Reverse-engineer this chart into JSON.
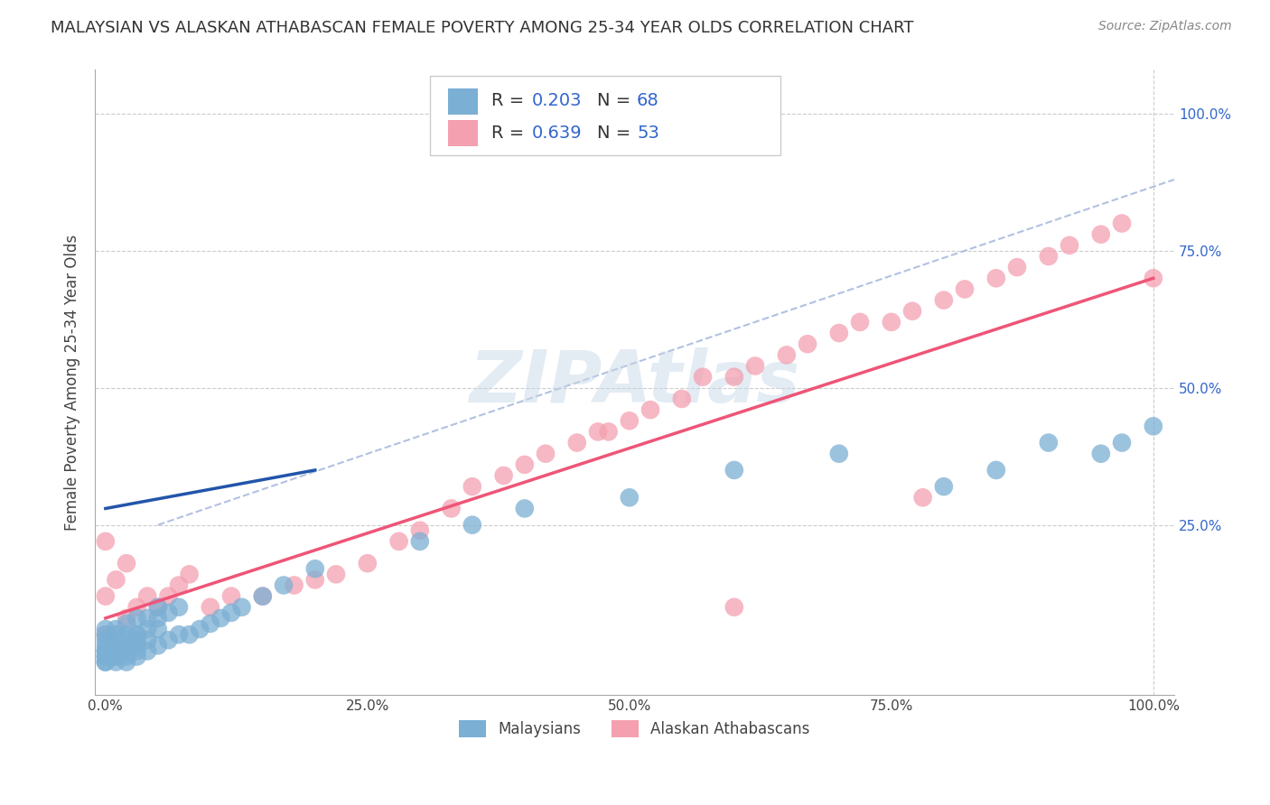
{
  "title": "MALAYSIAN VS ALASKAN ATHABASCAN FEMALE POVERTY AMONG 25-34 YEAR OLDS CORRELATION CHART",
  "source": "Source: ZipAtlas.com",
  "ylabel": "Female Poverty Among 25-34 Year Olds",
  "blue_color": "#7BAFD4",
  "pink_color": "#F4A0B0",
  "blue_line_color": "#2255AA",
  "pink_line_color": "#EE5577",
  "dash_color": "#AABBDD",
  "legend_R1": "0.203",
  "legend_N1": "68",
  "legend_R2": "0.639",
  "legend_N2": "53",
  "legend_label1": "Malaysians",
  "legend_label2": "Alaskan Athabascans",
  "RN_color": "#3366CC",
  "watermark_color": "#C8D8E8",
  "blue_x": [
    0.0,
    0.0,
    0.0,
    0.0,
    0.0,
    0.0,
    0.0,
    0.0,
    0.0,
    0.0,
    0.01,
    0.01,
    0.01,
    0.01,
    0.01,
    0.01,
    0.01,
    0.01,
    0.02,
    0.02,
    0.02,
    0.02,
    0.02,
    0.02,
    0.03,
    0.03,
    0.03,
    0.03,
    0.03,
    0.04,
    0.04,
    0.04,
    0.05,
    0.05,
    0.05,
    0.06,
    0.06,
    0.07,
    0.07,
    0.08,
    0.09,
    0.1,
    0.11,
    0.12,
    0.13,
    0.15,
    0.17,
    0.2,
    0.3,
    0.35,
    0.4,
    0.5,
    0.6,
    0.7,
    0.8,
    0.85,
    0.9,
    0.95,
    0.97,
    1.0,
    0.01,
    0.02,
    0.03,
    0.04,
    0.05,
    0.02,
    0.03,
    0.01
  ],
  "blue_y": [
    0.0,
    0.0,
    0.01,
    0.01,
    0.02,
    0.02,
    0.03,
    0.04,
    0.05,
    0.06,
    0.0,
    0.01,
    0.01,
    0.02,
    0.03,
    0.04,
    0.05,
    0.06,
    0.0,
    0.01,
    0.02,
    0.03,
    0.05,
    0.07,
    0.01,
    0.02,
    0.03,
    0.05,
    0.08,
    0.02,
    0.04,
    0.08,
    0.03,
    0.06,
    0.1,
    0.04,
    0.09,
    0.05,
    0.1,
    0.05,
    0.06,
    0.07,
    0.08,
    0.09,
    0.1,
    0.12,
    0.14,
    0.17,
    0.22,
    0.25,
    0.28,
    0.3,
    0.35,
    0.38,
    0.32,
    0.35,
    0.4,
    0.38,
    0.4,
    0.43,
    0.03,
    0.04,
    0.05,
    0.06,
    0.08,
    0.02,
    0.04,
    0.03
  ],
  "pink_x": [
    0.0,
    0.0,
    0.0,
    0.01,
    0.01,
    0.02,
    0.02,
    0.03,
    0.04,
    0.05,
    0.06,
    0.07,
    0.08,
    0.1,
    0.12,
    0.15,
    0.18,
    0.2,
    0.22,
    0.25,
    0.28,
    0.3,
    0.33,
    0.35,
    0.38,
    0.4,
    0.42,
    0.45,
    0.47,
    0.5,
    0.52,
    0.55,
    0.57,
    0.6,
    0.62,
    0.65,
    0.67,
    0.7,
    0.72,
    0.75,
    0.77,
    0.8,
    0.82,
    0.85,
    0.87,
    0.9,
    0.92,
    0.95,
    0.97,
    1.0,
    0.48,
    0.78,
    0.6
  ],
  "pink_y": [
    0.05,
    0.12,
    0.22,
    0.05,
    0.15,
    0.08,
    0.18,
    0.1,
    0.12,
    0.1,
    0.12,
    0.14,
    0.16,
    0.1,
    0.12,
    0.12,
    0.14,
    0.15,
    0.16,
    0.18,
    0.22,
    0.24,
    0.28,
    0.32,
    0.34,
    0.36,
    0.38,
    0.4,
    0.42,
    0.44,
    0.46,
    0.48,
    0.52,
    0.52,
    0.54,
    0.56,
    0.58,
    0.6,
    0.62,
    0.62,
    0.64,
    0.66,
    0.68,
    0.7,
    0.72,
    0.74,
    0.76,
    0.78,
    0.8,
    0.7,
    0.42,
    0.3,
    0.1
  ]
}
